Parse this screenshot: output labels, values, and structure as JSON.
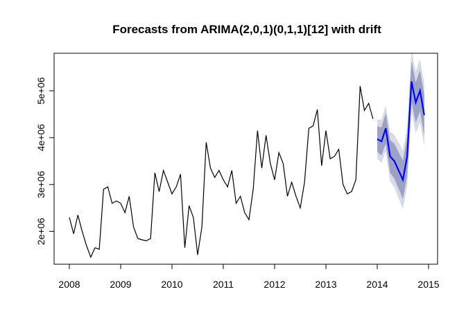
{
  "chart_data": {
    "type": "line",
    "title": "Forecasts from ARIMA(2,0,1)(0,1,1)[12] with drift",
    "xlabel": "",
    "ylabel": "",
    "xlim": [
      2008,
      2015
    ],
    "ylim": [
      1300000,
      5800000
    ],
    "x_ticks": [
      2008,
      2009,
      2010,
      2011,
      2012,
      2013,
      2014,
      2015
    ],
    "x_tick_labels": [
      "2008",
      "2009",
      "2010",
      "2011",
      "2012",
      "2013",
      "2014",
      "2015"
    ],
    "y_ticks": [
      2000000,
      3000000,
      4000000,
      5000000
    ],
    "y_tick_labels": [
      "2e+06",
      "3e+06",
      "4e+06",
      "5e+06"
    ],
    "grid": false,
    "legend": "none",
    "start": 2008,
    "frequency": 12,
    "observed": [
      2300000,
      1950000,
      2350000,
      2000000,
      1700000,
      1450000,
      1650000,
      1620000,
      2900000,
      2950000,
      2600000,
      2650000,
      2600000,
      2400000,
      2750000,
      2100000,
      1850000,
      1820000,
      1800000,
      1850000,
      3250000,
      2850000,
      3300000,
      3050000,
      2800000,
      2950000,
      3220000,
      1650000,
      2550000,
      2300000,
      1500000,
      2100000,
      3900000,
      3350000,
      3150000,
      3300000,
      3100000,
      2950000,
      3300000,
      2600000,
      2750000,
      2400000,
      2250000,
      2900000,
      4150000,
      3350000,
      4050000,
      3450000,
      3100000,
      3680000,
      3450000,
      2750000,
      3050000,
      2750000,
      2500000,
      3050000,
      4200000,
      4250000,
      4600000,
      3400000,
      4150000,
      3550000,
      3600000,
      3750000,
      3000000,
      2800000,
      2850000,
      3100000,
      5100000,
      4580000,
      4730000,
      4400000
    ],
    "forecast": {
      "point": [
        3970000,
        3920000,
        4200000,
        3600000,
        3500000,
        3300000,
        3100000,
        3600000,
        5200000,
        4750000,
        5000000,
        4480000
      ],
      "lo80": [
        3700000,
        3620000,
        3880000,
        3250000,
        3130000,
        2910000,
        2690000,
        3180000,
        4770000,
        4320000,
        4560000,
        4040000
      ],
      "hi80": [
        4240000,
        4220000,
        4520000,
        3950000,
        3870000,
        3690000,
        3510000,
        4020000,
        5630000,
        5180000,
        5440000,
        4920000
      ],
      "lo95": [
        3550000,
        3460000,
        3710000,
        3070000,
        2940000,
        2700000,
        2480000,
        2960000,
        4540000,
        4090000,
        4330000,
        3810000
      ],
      "hi95": [
        4390000,
        4380000,
        4690000,
        4130000,
        4060000,
        3900000,
        3720000,
        4240000,
        5860000,
        5410000,
        5670000,
        5150000
      ]
    },
    "colors": {
      "observed": "#000000",
      "forecast": "#0000FF",
      "band95": "#D8DAE6",
      "band80": "#9CA2C6",
      "axis": "#000000"
    }
  }
}
